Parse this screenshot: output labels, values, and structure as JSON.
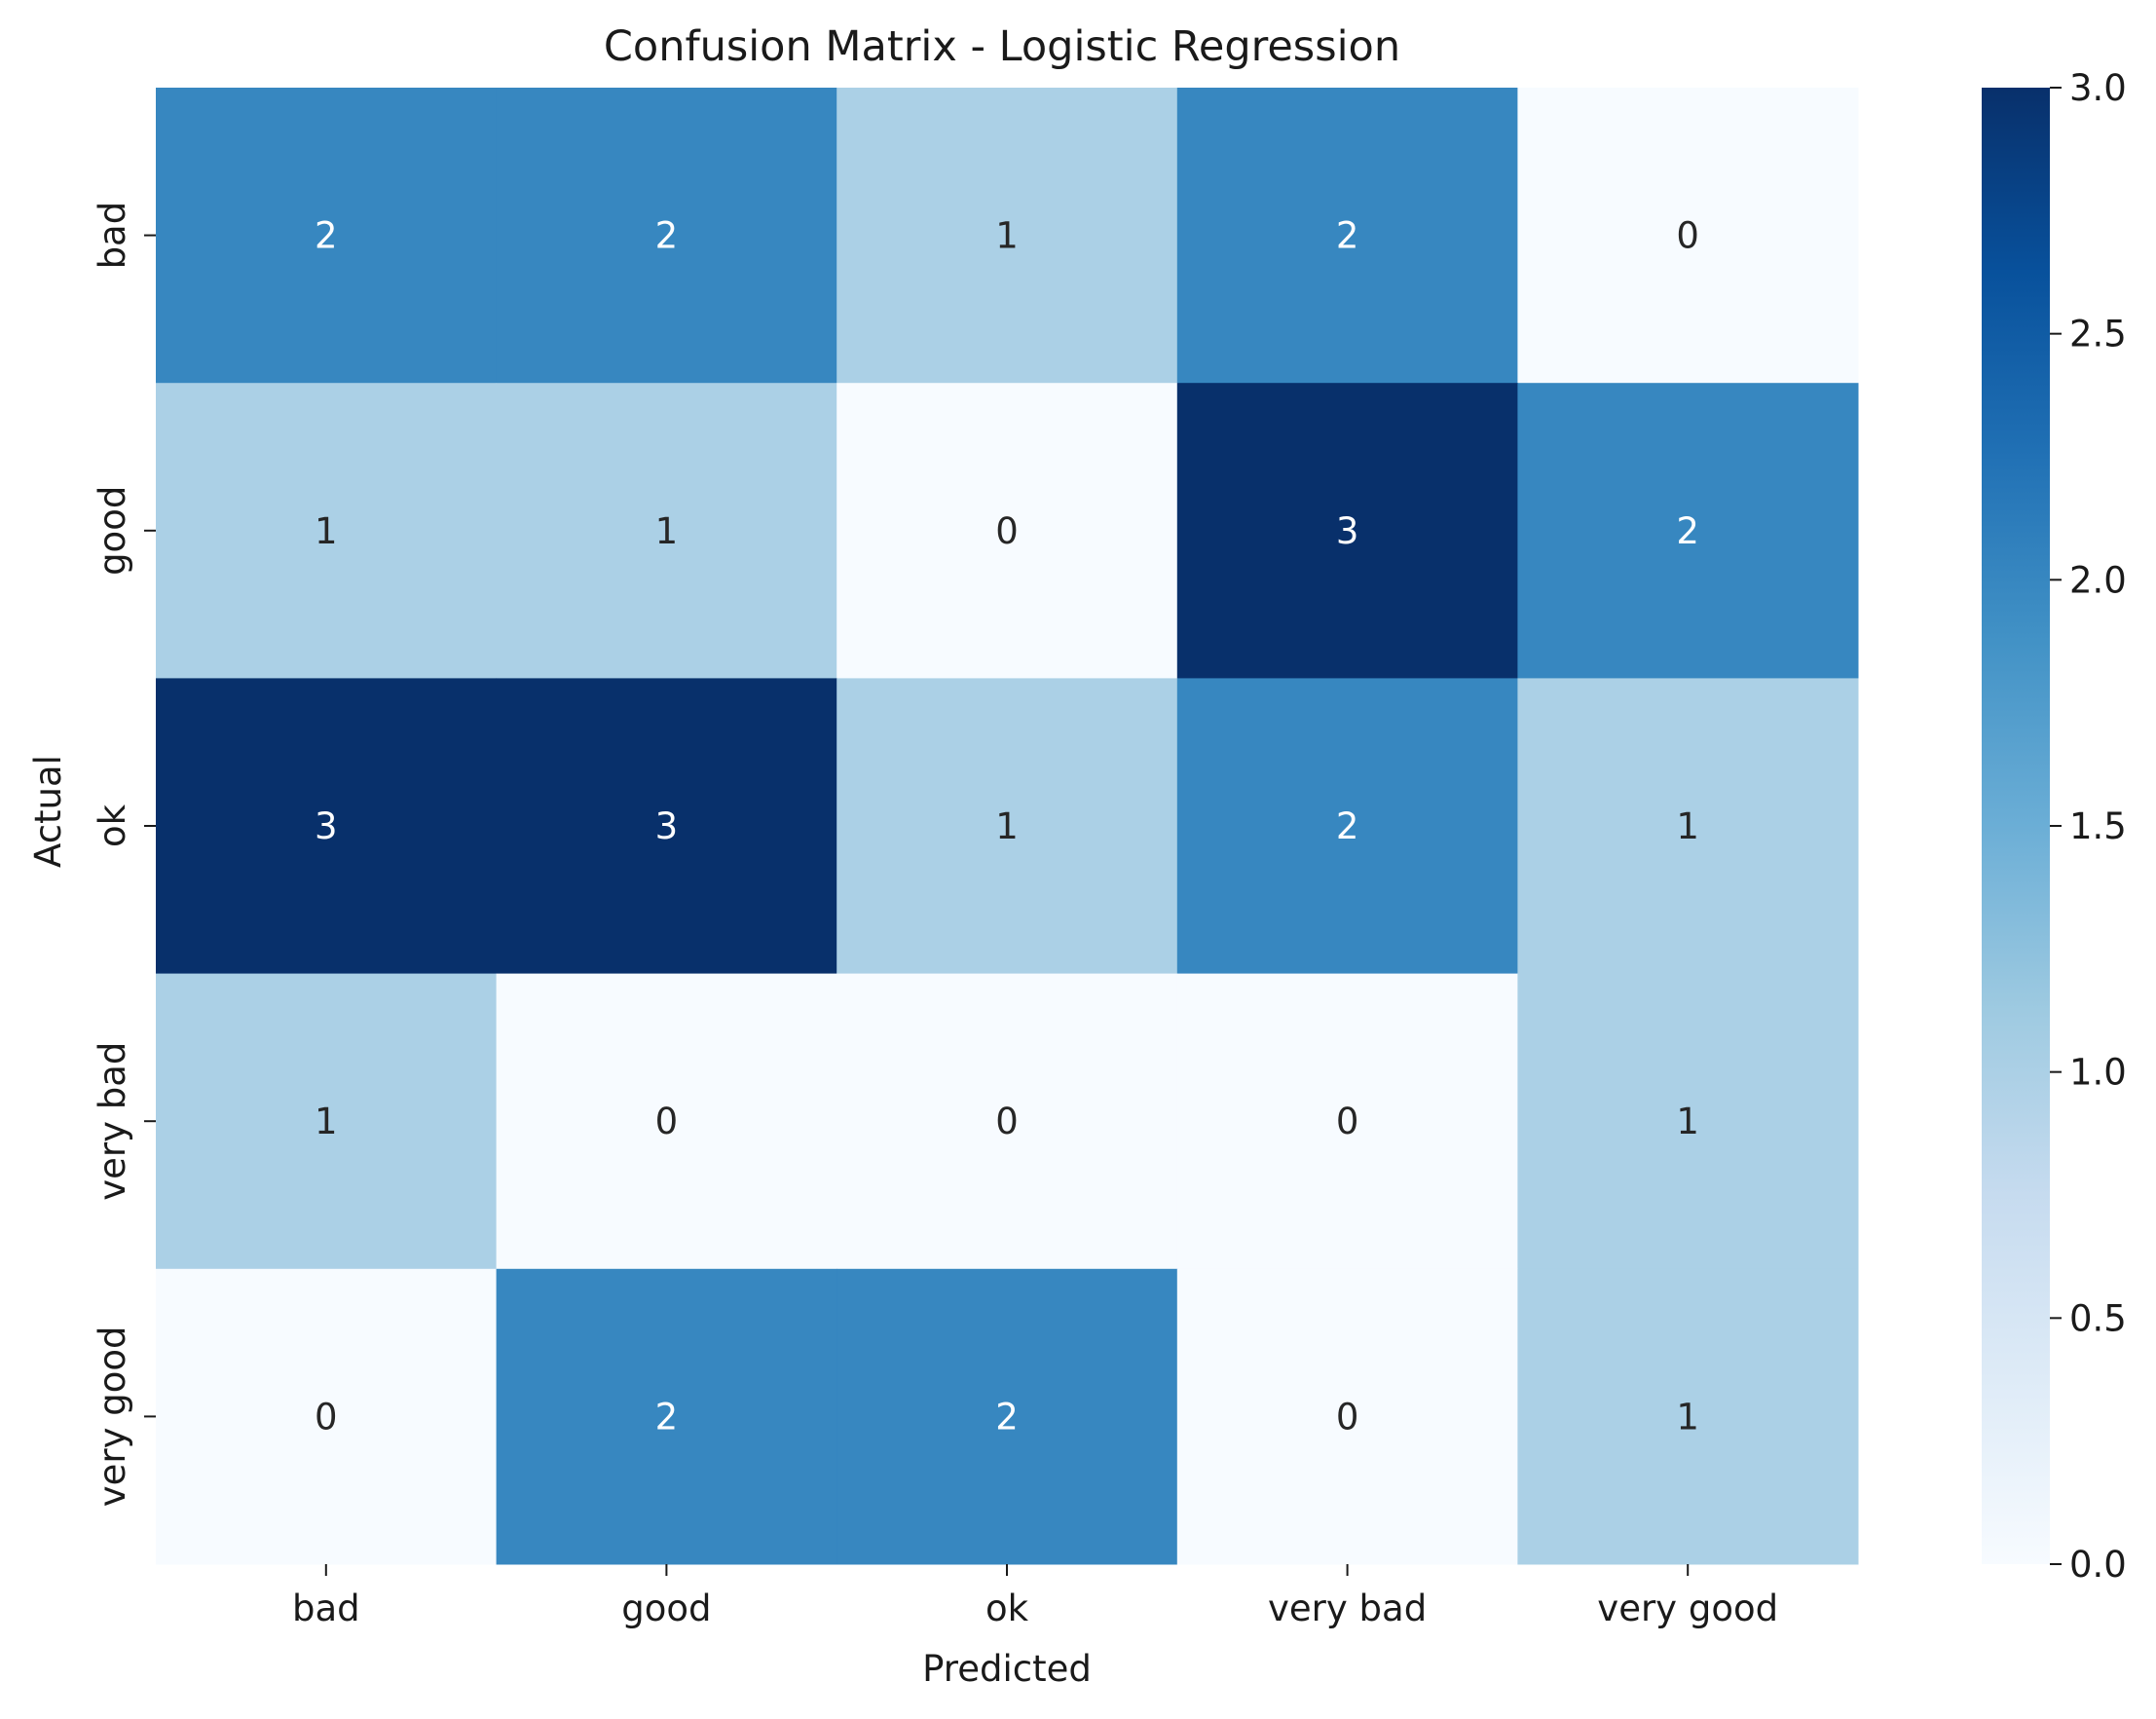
{
  "chart_data": {
    "type": "heatmap",
    "title": "Confusion Matrix - Logistic Regression",
    "xlabel": "Predicted",
    "ylabel": "Actual",
    "x_categories": [
      "bad",
      "good",
      "ok",
      "very bad",
      "very good"
    ],
    "y_categories": [
      "bad",
      "good",
      "ok",
      "very bad",
      "very good"
    ],
    "values": [
      [
        2,
        2,
        1,
        2,
        0
      ],
      [
        1,
        1,
        0,
        3,
        2
      ],
      [
        3,
        3,
        1,
        2,
        1
      ],
      [
        1,
        0,
        0,
        0,
        1
      ],
      [
        0,
        2,
        2,
        0,
        1
      ]
    ],
    "colormap": "Blues",
    "vmin": 0,
    "vmax": 3,
    "colorbar_ticks": [
      "0.0",
      "0.5",
      "1.0",
      "1.5",
      "2.0",
      "2.5",
      "3.0"
    ],
    "annotated": true
  }
}
